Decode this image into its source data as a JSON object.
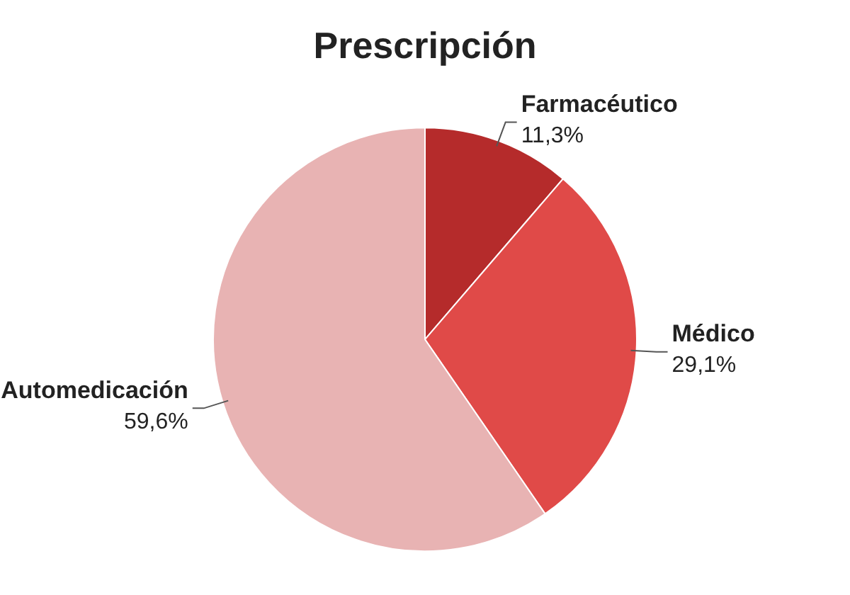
{
  "chart_data": {
    "type": "pie",
    "title": "Prescripción",
    "categories": [
      "Farmacéutico",
      "Médico",
      "Automedicación"
    ],
    "values": [
      11.3,
      29.1,
      59.6
    ],
    "value_labels": [
      "11,3%",
      "29,1%",
      "59,6%"
    ],
    "colors": [
      "#b52b2b",
      "#e04a48",
      "#e8b3b3"
    ],
    "legend": false
  }
}
